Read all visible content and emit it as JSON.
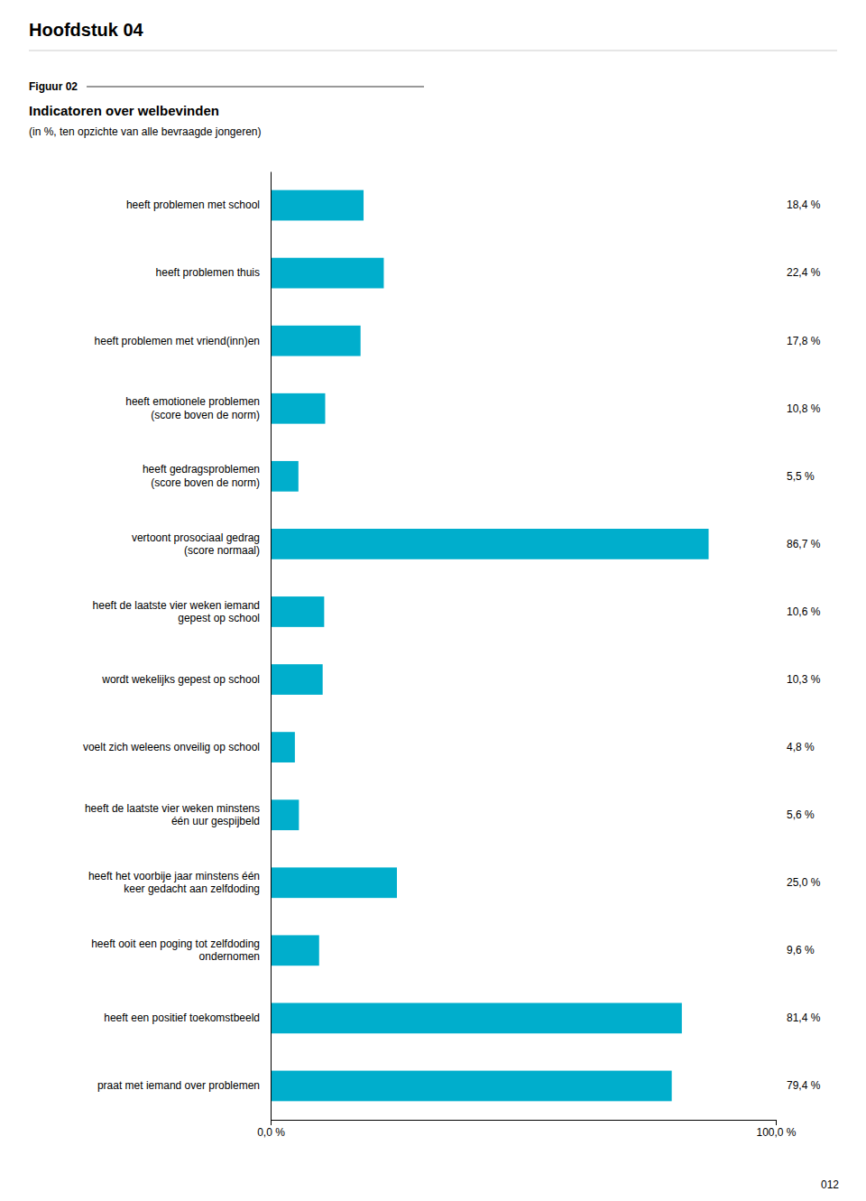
{
  "chart_data": {
    "type": "bar",
    "orientation": "horizontal",
    "title": "Indicatoren over welbevinden",
    "subtitle": "(in %, ten opzichte van alle bevraagde jongeren)",
    "annotations": [
      "Hoofdstuk 04",
      "Figuur 02",
      "012"
    ],
    "categories": [
      "heeft problemen met school",
      "heeft problemen thuis",
      "heeft problemen met vriend(inn)en",
      "heeft emotionele problemen\n(score boven de norm)",
      "heeft gedragsproblemen\n(score boven de norm)",
      "vertoont prosociaal gedrag\n(score normaal)",
      "heeft de laatste vier weken iemand\ngepest op school",
      "wordt wekelijks gepest op school",
      "voelt zich weleens onveilig op school",
      "heeft de laatste vier weken minstens\néén uur gespijbeld",
      "heeft het voorbije jaar minstens één\nkeer gedacht aan zelfdoding",
      "heeft ooit een poging tot zelfdoding\nondernomen",
      "heeft een positief toekomstbeeld",
      "praat met iemand over problemen"
    ],
    "values": [
      18.4,
      22.4,
      17.8,
      10.8,
      5.5,
      86.7,
      10.6,
      10.3,
      4.8,
      5.6,
      25.0,
      9.6,
      81.4,
      79.4
    ],
    "value_labels": [
      "18,4 %",
      "22,4 %",
      "17,8 %",
      "10,8 %",
      "5,5 %",
      "86,7 %",
      "10,6 %",
      "10,3 %",
      "4,8 %",
      "5,6 %",
      "25,0 %",
      "9,6 %",
      "81,4 %",
      "79,4 %"
    ],
    "data_labels": true,
    "color": "#00AECC",
    "xlim": [
      0,
      100
    ],
    "xticks": [
      {
        "value": 0,
        "label": "0,0 %"
      },
      {
        "value": 100,
        "label": "100,0 %"
      }
    ],
    "grid": false
  }
}
